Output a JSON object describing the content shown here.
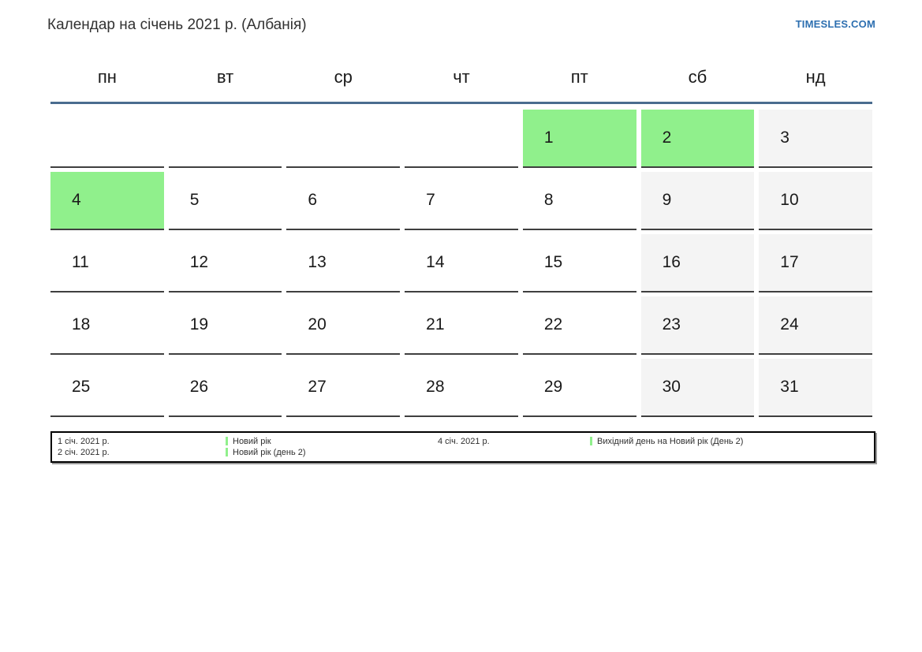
{
  "header": {
    "title": "Календар на січень 2021 р. (Албанія)",
    "site_link": "TIMESLES.COM"
  },
  "calendar": {
    "weekdays": [
      "пн",
      "вт",
      "ср",
      "чт",
      "пт",
      "сб",
      "нд"
    ],
    "weeks": [
      [
        {
          "day": "",
          "type": "empty"
        },
        {
          "day": "",
          "type": "empty"
        },
        {
          "day": "",
          "type": "empty"
        },
        {
          "day": "",
          "type": "empty"
        },
        {
          "day": "1",
          "type": "holiday"
        },
        {
          "day": "2",
          "type": "holiday"
        },
        {
          "day": "3",
          "type": "weekend"
        }
      ],
      [
        {
          "day": "4",
          "type": "holiday"
        },
        {
          "day": "5",
          "type": "workday"
        },
        {
          "day": "6",
          "type": "workday"
        },
        {
          "day": "7",
          "type": "workday"
        },
        {
          "day": "8",
          "type": "workday"
        },
        {
          "day": "9",
          "type": "weekend"
        },
        {
          "day": "10",
          "type": "weekend"
        }
      ],
      [
        {
          "day": "11",
          "type": "workday"
        },
        {
          "day": "12",
          "type": "workday"
        },
        {
          "day": "13",
          "type": "workday"
        },
        {
          "day": "14",
          "type": "workday"
        },
        {
          "day": "15",
          "type": "workday"
        },
        {
          "day": "16",
          "type": "weekend"
        },
        {
          "day": "17",
          "type": "weekend"
        }
      ],
      [
        {
          "day": "18",
          "type": "workday"
        },
        {
          "day": "19",
          "type": "workday"
        },
        {
          "day": "20",
          "type": "workday"
        },
        {
          "day": "21",
          "type": "workday"
        },
        {
          "day": "22",
          "type": "workday"
        },
        {
          "day": "23",
          "type": "weekend"
        },
        {
          "day": "24",
          "type": "weekend"
        }
      ],
      [
        {
          "day": "25",
          "type": "workday"
        },
        {
          "day": "26",
          "type": "workday"
        },
        {
          "day": "27",
          "type": "workday"
        },
        {
          "day": "28",
          "type": "workday"
        },
        {
          "day": "29",
          "type": "workday"
        },
        {
          "day": "30",
          "type": "weekend"
        },
        {
          "day": "31",
          "type": "weekend"
        }
      ]
    ]
  },
  "legend": {
    "entries": [
      {
        "date": "1 січ. 2021 р.",
        "label": "Новий рік"
      },
      {
        "date": "2 січ. 2021 р.",
        "label": "Новий рік (день 2)"
      },
      {
        "date": "4 січ. 2021 р.",
        "label": "Вихідний день на Новий рік (День 2)"
      }
    ]
  },
  "colors": {
    "holiday_green": "#90f08c",
    "weekend_gray": "#f4f4f4",
    "header_rule_blue": "#4a6c8f",
    "cell_border": "#3f3f3f",
    "link_blue": "#2d6fb0"
  }
}
